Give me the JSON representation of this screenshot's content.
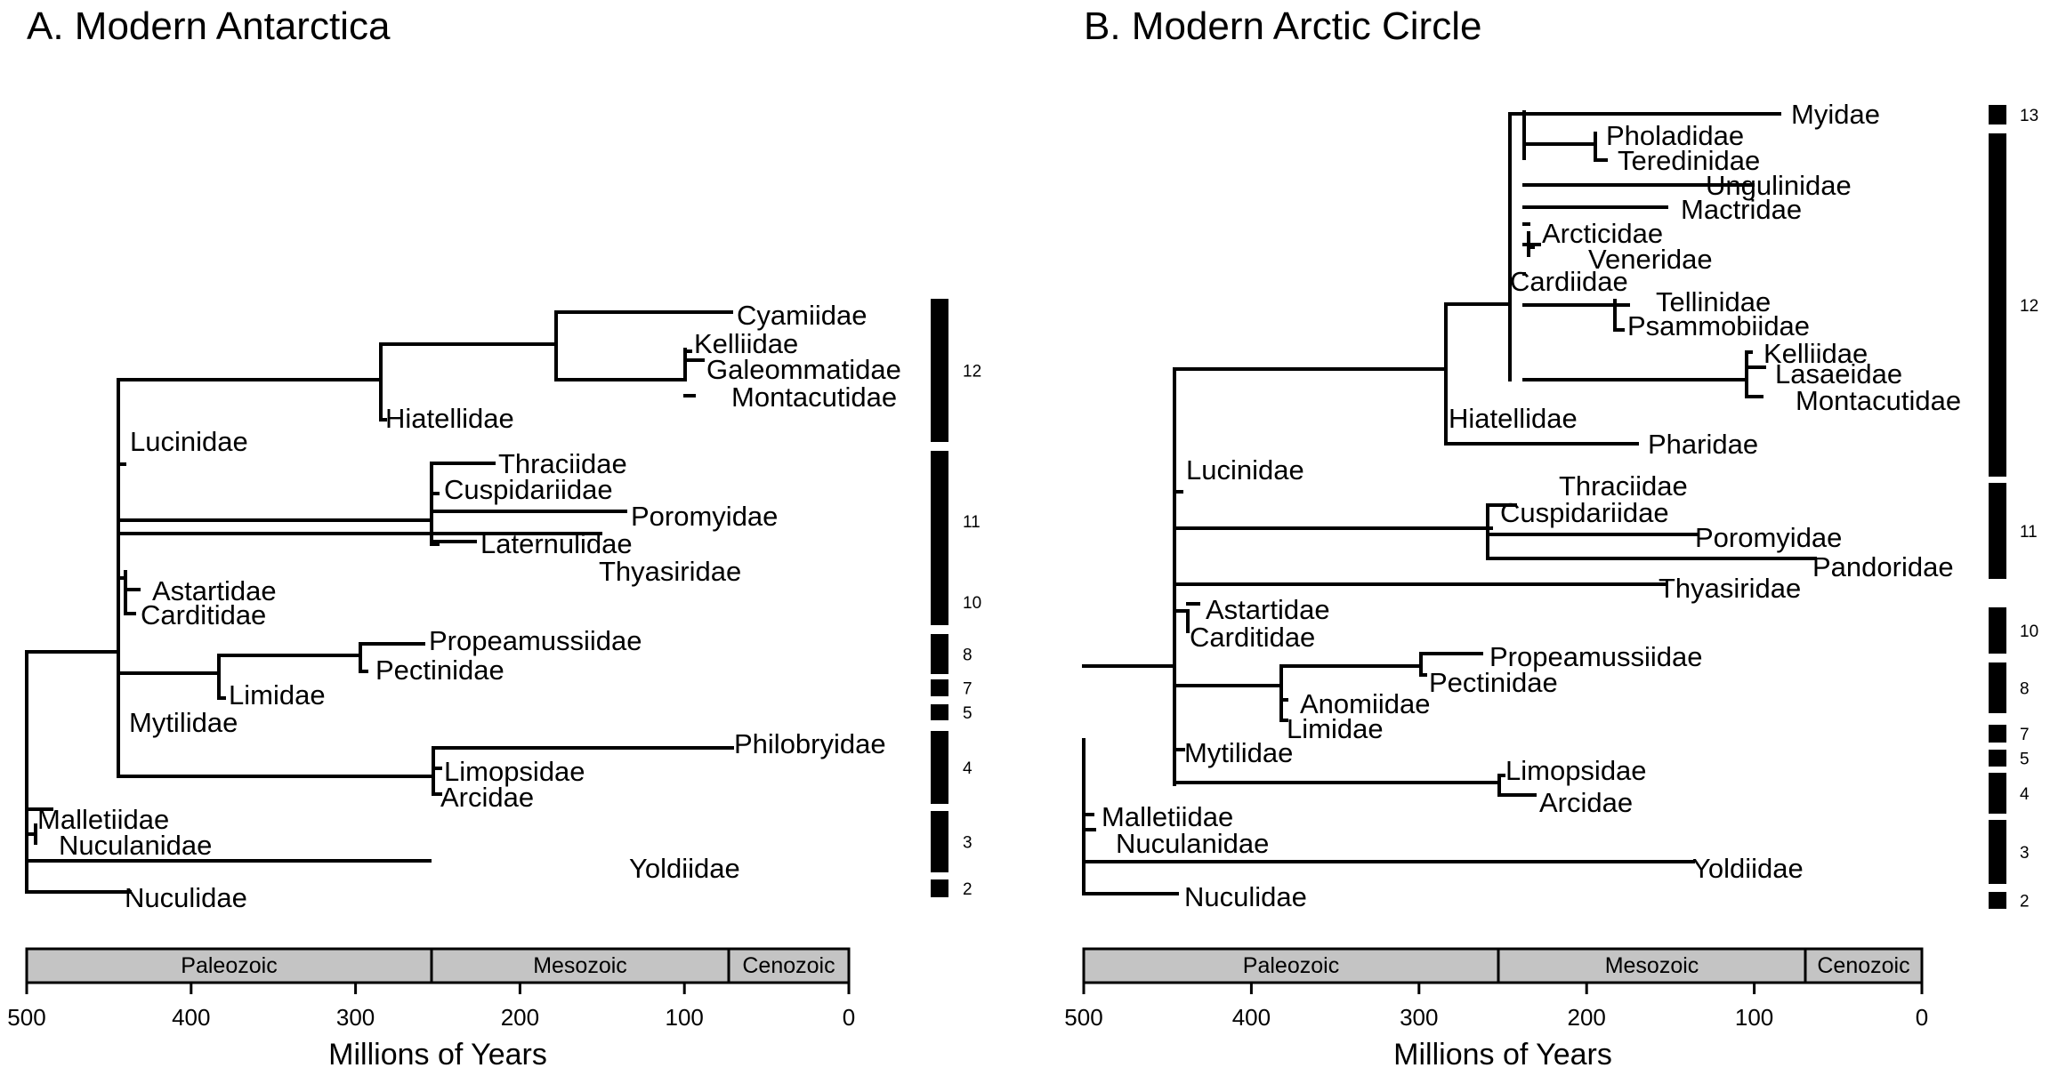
{
  "panels": [
    {
      "id": "A",
      "title": "A.  Modern Antarctica",
      "taxa": [
        {
          "key": "cyam",
          "label": "Cyamiidae"
        },
        {
          "key": "kell",
          "label": "Kelliidae"
        },
        {
          "key": "gale",
          "label": "Galeommatidae"
        },
        {
          "key": "mont",
          "label": "Montacutidae"
        },
        {
          "key": "hiat",
          "label": "Hiatellidae"
        },
        {
          "key": "luci",
          "label": "Lucinidae"
        },
        {
          "key": "thra",
          "label": "Thraciidae"
        },
        {
          "key": "cusp",
          "label": "Cuspidariidae"
        },
        {
          "key": "poro",
          "label": "Poromyidae"
        },
        {
          "key": "late",
          "label": "Laternulidae"
        },
        {
          "key": "thya",
          "label": "Thyasiridae"
        },
        {
          "key": "asta",
          "label": "Astartidae"
        },
        {
          "key": "card",
          "label": "Carditidae"
        },
        {
          "key": "prop",
          "label": "Propeamussiidae"
        },
        {
          "key": "pect",
          "label": "Pectinidae"
        },
        {
          "key": "limi",
          "label": "Limidae"
        },
        {
          "key": "myti",
          "label": "Mytilidae"
        },
        {
          "key": "phil",
          "label": "Philobryidae"
        },
        {
          "key": "limo",
          "label": "Limopsidae"
        },
        {
          "key": "arci",
          "label": "Arcidae"
        },
        {
          "key": "mall",
          "label": "Malletiidae"
        },
        {
          "key": "nucn",
          "label": "Nuculanidae"
        },
        {
          "key": "yold",
          "label": "Yoldiidae"
        },
        {
          "key": "nucu",
          "label": "Nuculidae"
        }
      ],
      "bars": [
        "12",
        "11",
        "10",
        "8",
        "7",
        "5",
        "4",
        "3",
        "2"
      ],
      "eras": [
        "Paleozoic",
        "Mesozoic",
        "Cenozoic"
      ],
      "ticks": [
        "500",
        "400",
        "300",
        "200",
        "100",
        "0"
      ],
      "xlabel": "Millions of Years"
    },
    {
      "id": "B",
      "title": "B.  Modern Arctic Circle",
      "taxa": [
        {
          "key": "myid",
          "label": "Myidae"
        },
        {
          "key": "phol",
          "label": "Pholadidae"
        },
        {
          "key": "tere",
          "label": "Teredinidae"
        },
        {
          "key": "ungu",
          "label": "Ungulinidae"
        },
        {
          "key": "mact",
          "label": "Mactridae"
        },
        {
          "key": "arct",
          "label": "Arcticidae"
        },
        {
          "key": "vene",
          "label": "Veneridae"
        },
        {
          "key": "cardi",
          "label": "Cardiidae"
        },
        {
          "key": "tell",
          "label": "Tellinidae"
        },
        {
          "key": "psam",
          "label": "Psammobiidae"
        },
        {
          "key": "kell",
          "label": "Kelliidae"
        },
        {
          "key": "lasa",
          "label": "Lasaeidae"
        },
        {
          "key": "mont",
          "label": "Montacutidae"
        },
        {
          "key": "hiat",
          "label": "Hiatellidae"
        },
        {
          "key": "phar",
          "label": "Pharidae"
        },
        {
          "key": "luci",
          "label": "Lucinidae"
        },
        {
          "key": "thra",
          "label": "Thraciidae"
        },
        {
          "key": "cusp",
          "label": "Cuspidariidae"
        },
        {
          "key": "poro",
          "label": "Poromyidae"
        },
        {
          "key": "pand",
          "label": "Pandoridae"
        },
        {
          "key": "thya",
          "label": "Thyasiridae"
        },
        {
          "key": "asta",
          "label": "Astartidae"
        },
        {
          "key": "card",
          "label": "Carditidae"
        },
        {
          "key": "prop",
          "label": "Propeamussiidae"
        },
        {
          "key": "pect",
          "label": "Pectinidae"
        },
        {
          "key": "anom",
          "label": "Anomiidae"
        },
        {
          "key": "limi",
          "label": "Limidae"
        },
        {
          "key": "myti",
          "label": "Mytilidae"
        },
        {
          "key": "limo",
          "label": "Limopsidae"
        },
        {
          "key": "arci",
          "label": "Arcidae"
        },
        {
          "key": "mall",
          "label": "Malletiidae"
        },
        {
          "key": "nucn",
          "label": "Nuculanidae"
        },
        {
          "key": "yold",
          "label": "Yoldiidae"
        },
        {
          "key": "nucu",
          "label": "Nuculidae"
        }
      ],
      "bars": [
        "13",
        "12",
        "11",
        "10",
        "8",
        "7",
        "5",
        "4",
        "3",
        "2"
      ],
      "eras": [
        "Paleozoic",
        "Mesozoic",
        "Cenozoic"
      ],
      "ticks": [
        "500",
        "400",
        "300",
        "200",
        "100",
        "0"
      ],
      "xlabel": "Millions of Years"
    }
  ],
  "colors": {
    "line": "#000000",
    "era_fill": "#c4c4c4",
    "bar_fill": "#000000"
  }
}
